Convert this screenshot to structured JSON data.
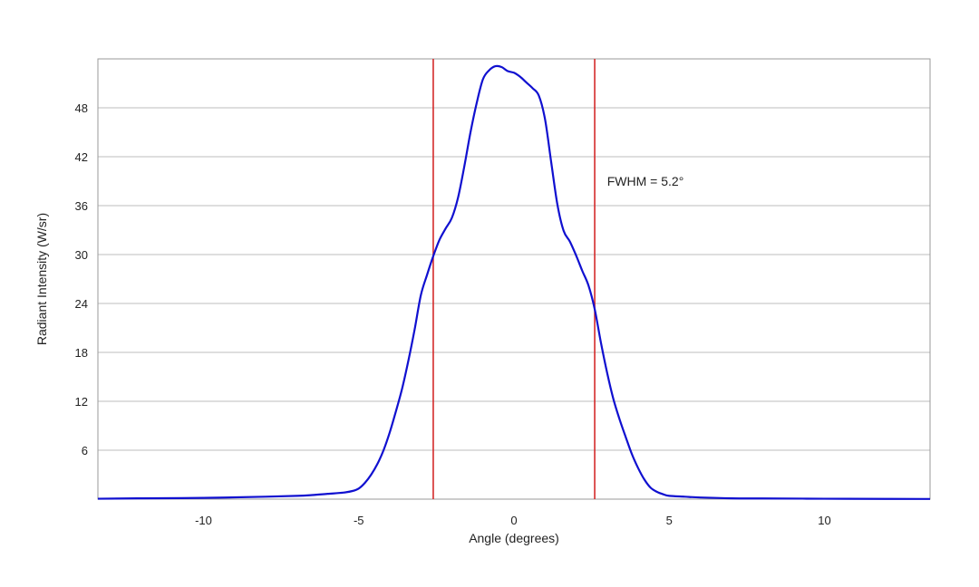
{
  "colors": {
    "curve": "#1010d0",
    "markers": "#d42a2a",
    "grid": "#bdbdbd",
    "frame": "#9a9a9a"
  },
  "chart_data": {
    "type": "line",
    "title": "",
    "xlabel": "Angle (degrees)",
    "ylabel": "Radiant Intensity (W/sr)",
    "xlim": [
      -13.4,
      13.4
    ],
    "ylim": [
      0,
      54
    ],
    "xticks": [
      -10,
      -5,
      0,
      5,
      10
    ],
    "yticks": [
      6,
      12,
      18,
      24,
      30,
      36,
      42,
      48
    ],
    "grid": "horizontal",
    "legend": "none",
    "series": [
      {
        "x": [
          -13.4,
          -12,
          -10,
          -8,
          -7,
          -6.5,
          -6,
          -5.5,
          -5.2,
          -5,
          -4.8,
          -4.6,
          -4.4,
          -4.2,
          -4.0,
          -3.8,
          -3.6,
          -3.4,
          -3.2,
          -3.0,
          -2.8,
          -2.6,
          -2.4,
          -2.2,
          -2.0,
          -1.8,
          -1.6,
          -1.4,
          -1.2,
          -1.0,
          -0.8,
          -0.6,
          -0.4,
          -0.2,
          0.0,
          0.2,
          0.4,
          0.6,
          0.8,
          1.0,
          1.2,
          1.4,
          1.6,
          1.8,
          2.0,
          2.2,
          2.4,
          2.6,
          2.8,
          3.0,
          3.2,
          3.4,
          3.6,
          3.8,
          4.0,
          4.2,
          4.4,
          4.6,
          4.8,
          5.0,
          5.5,
          6,
          7,
          8,
          10,
          12,
          13.4
        ],
        "y": [
          0.05,
          0.1,
          0.15,
          0.3,
          0.4,
          0.5,
          0.65,
          0.8,
          1.0,
          1.3,
          2.0,
          3.0,
          4.3,
          6.0,
          8.2,
          10.8,
          13.6,
          17.0,
          20.8,
          25.0,
          27.5,
          29.8,
          31.8,
          33.2,
          34.5,
          37.0,
          40.8,
          45.0,
          48.6,
          51.5,
          52.6,
          53.1,
          53.0,
          52.5,
          52.3,
          51.8,
          51.1,
          50.4,
          49.5,
          46.6,
          41.3,
          36.1,
          32.9,
          31.6,
          29.9,
          28.0,
          26.2,
          23.3,
          19.2,
          15.5,
          12.3,
          9.8,
          7.6,
          5.5,
          3.8,
          2.4,
          1.4,
          0.9,
          0.6,
          0.4,
          0.3,
          0.2,
          0.1,
          0.08,
          0.05,
          0.03,
          0.02
        ]
      }
    ],
    "vertical_lines": [
      -2.6,
      2.6
    ],
    "annotation": {
      "text": "FWHM = 5.2°",
      "x": 3.0,
      "y": 39
    }
  }
}
